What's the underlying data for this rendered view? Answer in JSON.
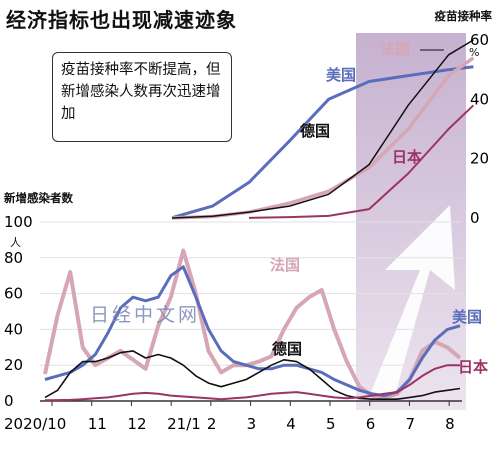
{
  "title": "经济指标也出现减速迹象",
  "note": "疫苗接种率不断提高，但新增感染人数再次迅速增加",
  "watermark": "日经中文网",
  "chart_data": [
    {
      "type": "line",
      "title": "疫苗接种率",
      "unit": "%",
      "ylim": [
        0,
        60
      ],
      "y_ticks": [
        "0",
        "20",
        "40",
        "60"
      ],
      "x": [
        "2021-01-01",
        "2021-02-01",
        "2021-03-01",
        "2021-04-01",
        "2021-05-01",
        "2021-06-01",
        "2021-07-01",
        "2021-08-01",
        "2021-08-20"
      ],
      "series": [
        {
          "name": "美国",
          "color": "#5a6dbd",
          "values": [
            0.1,
            4,
            12,
            26,
            40,
            46,
            48,
            50,
            51
          ]
        },
        {
          "name": "法国",
          "color": "#d6a6b5",
          "values": [
            0,
            0.5,
            2,
            5,
            9,
            17,
            30,
            48,
            54
          ]
        },
        {
          "name": "德国",
          "color": "#111111",
          "values": [
            0,
            0.6,
            2,
            4,
            8,
            18,
            38,
            55,
            60
          ]
        },
        {
          "name": "日本",
          "color": "#9b3364",
          "values": [
            null,
            null,
            0.05,
            0.3,
            0.7,
            3,
            15,
            30,
            38
          ]
        }
      ]
    },
    {
      "type": "line",
      "title": "新增感染者数",
      "unit": "人",
      "ylim": [
        0,
        100
      ],
      "y_ticks": [
        "0",
        "20",
        "40",
        "60",
        "80",
        "100"
      ],
      "x_tick_labels": [
        "2020/10",
        "11",
        "12",
        "21/1",
        "2",
        "3",
        "4",
        "5",
        "6",
        "7",
        "8"
      ],
      "series": [
        {
          "name": "法国",
          "color": "#d6a6b5",
          "values": [
            15,
            48,
            72,
            30,
            20,
            24,
            28,
            23,
            18,
            42,
            58,
            84,
            60,
            28,
            16,
            20,
            20,
            22,
            25,
            40,
            52,
            58,
            62,
            40,
            22,
            8,
            3,
            2,
            4,
            12,
            28,
            33,
            30,
            24
          ]
        },
        {
          "name": "美国",
          "color": "#5a6dbd",
          "values": [
            12,
            14,
            16,
            20,
            26,
            38,
            52,
            58,
            56,
            58,
            70,
            75,
            58,
            40,
            28,
            22,
            20,
            18,
            18,
            20,
            20,
            18,
            16,
            12,
            9,
            6,
            4,
            3,
            5,
            12,
            24,
            34,
            40,
            42
          ]
        },
        {
          "name": "德国",
          "color": "#111111",
          "values": [
            2,
            6,
            16,
            22,
            22,
            24,
            27,
            28,
            24,
            26,
            24,
            20,
            14,
            10,
            8,
            10,
            12,
            16,
            20,
            23,
            22,
            18,
            12,
            6,
            3,
            1.5,
            1,
            1,
            1,
            2,
            3,
            5,
            6,
            7
          ]
        },
        {
          "name": "日本",
          "color": "#9b3364",
          "values": [
            0.4,
            0.5,
            0.6,
            1,
            1.5,
            2,
            3,
            4,
            4.5,
            4,
            3,
            2.5,
            2,
            1.5,
            1,
            1.5,
            2,
            3,
            4,
            4.5,
            5,
            4,
            3,
            2,
            1.5,
            2,
            3,
            4,
            5,
            9,
            14,
            18,
            20,
            20
          ]
        }
      ]
    }
  ]
}
